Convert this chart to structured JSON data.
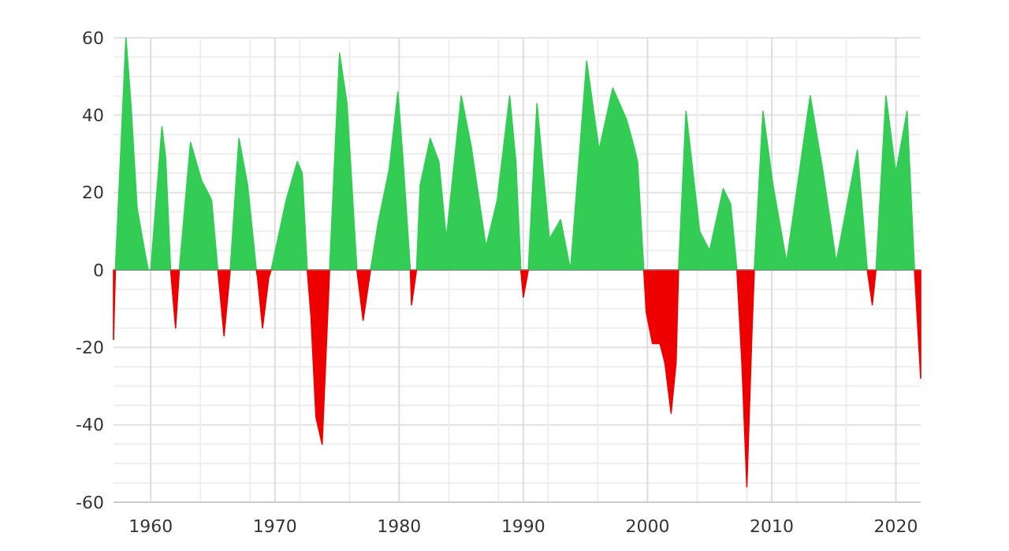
{
  "chart_data": {
    "type": "area",
    "x": [
      1957.0,
      1957.15,
      1958.0,
      1958.4,
      1958.9,
      1959.5,
      1959.8,
      1960.0,
      1960.9,
      1961.2,
      1961.6,
      1962.0,
      1962.3,
      1963.2,
      1964.1,
      1964.6,
      1964.9,
      1965.4,
      1965.9,
      1966.4,
      1967.1,
      1967.8,
      1968.5,
      1968.6,
      1969.0,
      1969.5,
      1969.7,
      1970.3,
      1970.9,
      1971.8,
      1972.2,
      1972.6,
      1972.9,
      1973.3,
      1973.8,
      1974.4,
      1975.2,
      1975.8,
      1976.6,
      1977.1,
      1977.7,
      1978.3,
      1979.2,
      1979.9,
      1980.3,
      1980.9,
      1981.0,
      1981.4,
      1981.7,
      1982.5,
      1983.2,
      1983.8,
      1985.0,
      1985.8,
      1987.0,
      1987.9,
      1988.9,
      1989.4,
      1989.8,
      1990.0,
      1990.4,
      1991.1,
      1991.5,
      1992.1,
      1993.0,
      1993.8,
      1995.1,
      1996.1,
      1997.2,
      1998.3,
      1998.9,
      1999.2,
      1999.7,
      1999.9,
      2000.4,
      2001.0,
      2001.4,
      2001.9,
      2002.3,
      2002.5,
      2003.1,
      2004.2,
      2005.0,
      2006.1,
      2006.7,
      2007.2,
      2007.6,
      2008.0,
      2008.4,
      2008.6,
      2009.3,
      2010.1,
      2011.2,
      2013.1,
      2014.1,
      2015.2,
      2016.9,
      2017.7,
      2018.1,
      2018.4,
      2019.2,
      2020.0,
      2020.9,
      2021.5,
      2022.0
    ],
    "series": [
      {
        "color": "#33cc55",
        "values": [
          null,
          0,
          60,
          43,
          16,
          5,
          0,
          0,
          37,
          29,
          0,
          null,
          0,
          33,
          23,
          20,
          18,
          0,
          null,
          0,
          34,
          22,
          0,
          null,
          null,
          null,
          0,
          9,
          18,
          28,
          25,
          0,
          null,
          null,
          null,
          0,
          56,
          43,
          0,
          null,
          0,
          12,
          26,
          46,
          29,
          0,
          null,
          0,
          22,
          34,
          28,
          8,
          45,
          32,
          6,
          18,
          45,
          28,
          0,
          null,
          0,
          43,
          29,
          8,
          13,
          0,
          54,
          31,
          47,
          39,
          32,
          28,
          0,
          null,
          null,
          null,
          null,
          null,
          null,
          0,
          41,
          10,
          5,
          21,
          17,
          0,
          null,
          null,
          null,
          0,
          41,
          22,
          2,
          45,
          26,
          2,
          31,
          0,
          null,
          0,
          45,
          25,
          41,
          0,
          null
        ]
      },
      {
        "color": "#ee0000",
        "values": [
          -18,
          0,
          null,
          null,
          null,
          null,
          null,
          null,
          null,
          null,
          0,
          -15,
          0,
          null,
          null,
          null,
          null,
          0,
          -17,
          0,
          null,
          null,
          0,
          -2,
          -15,
          -2,
          0,
          null,
          null,
          null,
          null,
          0,
          -12,
          -38,
          -45,
          0,
          null,
          null,
          0,
          -13,
          0,
          null,
          null,
          null,
          null,
          0,
          -9,
          0,
          null,
          null,
          null,
          null,
          null,
          null,
          null,
          null,
          null,
          null,
          0,
          -7,
          0,
          null,
          null,
          null,
          null,
          null,
          null,
          null,
          null,
          null,
          null,
          null,
          0,
          -11,
          -19,
          -19,
          -24,
          -37,
          -24,
          0,
          null,
          null,
          null,
          null,
          null,
          0,
          -24,
          -56,
          -17,
          0,
          null,
          null,
          null,
          null,
          null,
          null,
          null,
          0,
          -9,
          0,
          null,
          null,
          null,
          0,
          -28
        ]
      }
    ],
    "xlim": [
      1957,
      2022
    ],
    "xticks": [
      1960,
      {
        "value": 1964,
        "label": null
      },
      {
        "value": 1968,
        "label": null
      },
      1970,
      {
        "value": 1972,
        "label": null
      },
      {
        "value": 1976,
        "label": null
      },
      1980,
      {
        "value": 1984,
        "label": null
      },
      {
        "value": 1988,
        "label": null
      },
      1990,
      {
        "value": 1992,
        "label": null
      },
      {
        "value": 1996,
        "label": null
      },
      2000,
      {
        "value": 2004,
        "label": null
      },
      {
        "value": 2008,
        "label": null
      },
      2010,
      {
        "value": 2012,
        "label": null
      },
      {
        "value": 2016,
        "label": null
      },
      2020
    ],
    "ylim": [
      -60,
      60
    ],
    "yticks": [
      -60,
      {
        "value": -55,
        "label": null
      },
      {
        "value": -50,
        "label": null
      },
      {
        "value": -45,
        "label": null
      },
      -40,
      {
        "value": -35,
        "label": null
      },
      {
        "value": -30,
        "label": null
      },
      {
        "value": -25,
        "label": null
      },
      -20,
      {
        "value": -15,
        "label": null
      },
      {
        "value": -10,
        "label": null
      },
      {
        "value": -5,
        "label": null
      },
      0,
      {
        "value": 5,
        "label": null
      },
      {
        "value": 10,
        "label": null
      },
      {
        "value": 15,
        "label": null
      },
      20,
      {
        "value": 25,
        "label": null
      },
      {
        "value": 30,
        "label": null
      },
      {
        "value": 35,
        "label": null
      },
      40,
      {
        "value": 45,
        "label": null
      },
      {
        "value": 50,
        "label": null
      },
      {
        "value": 55,
        "label": null
      },
      60
    ],
    "grid": true
  }
}
